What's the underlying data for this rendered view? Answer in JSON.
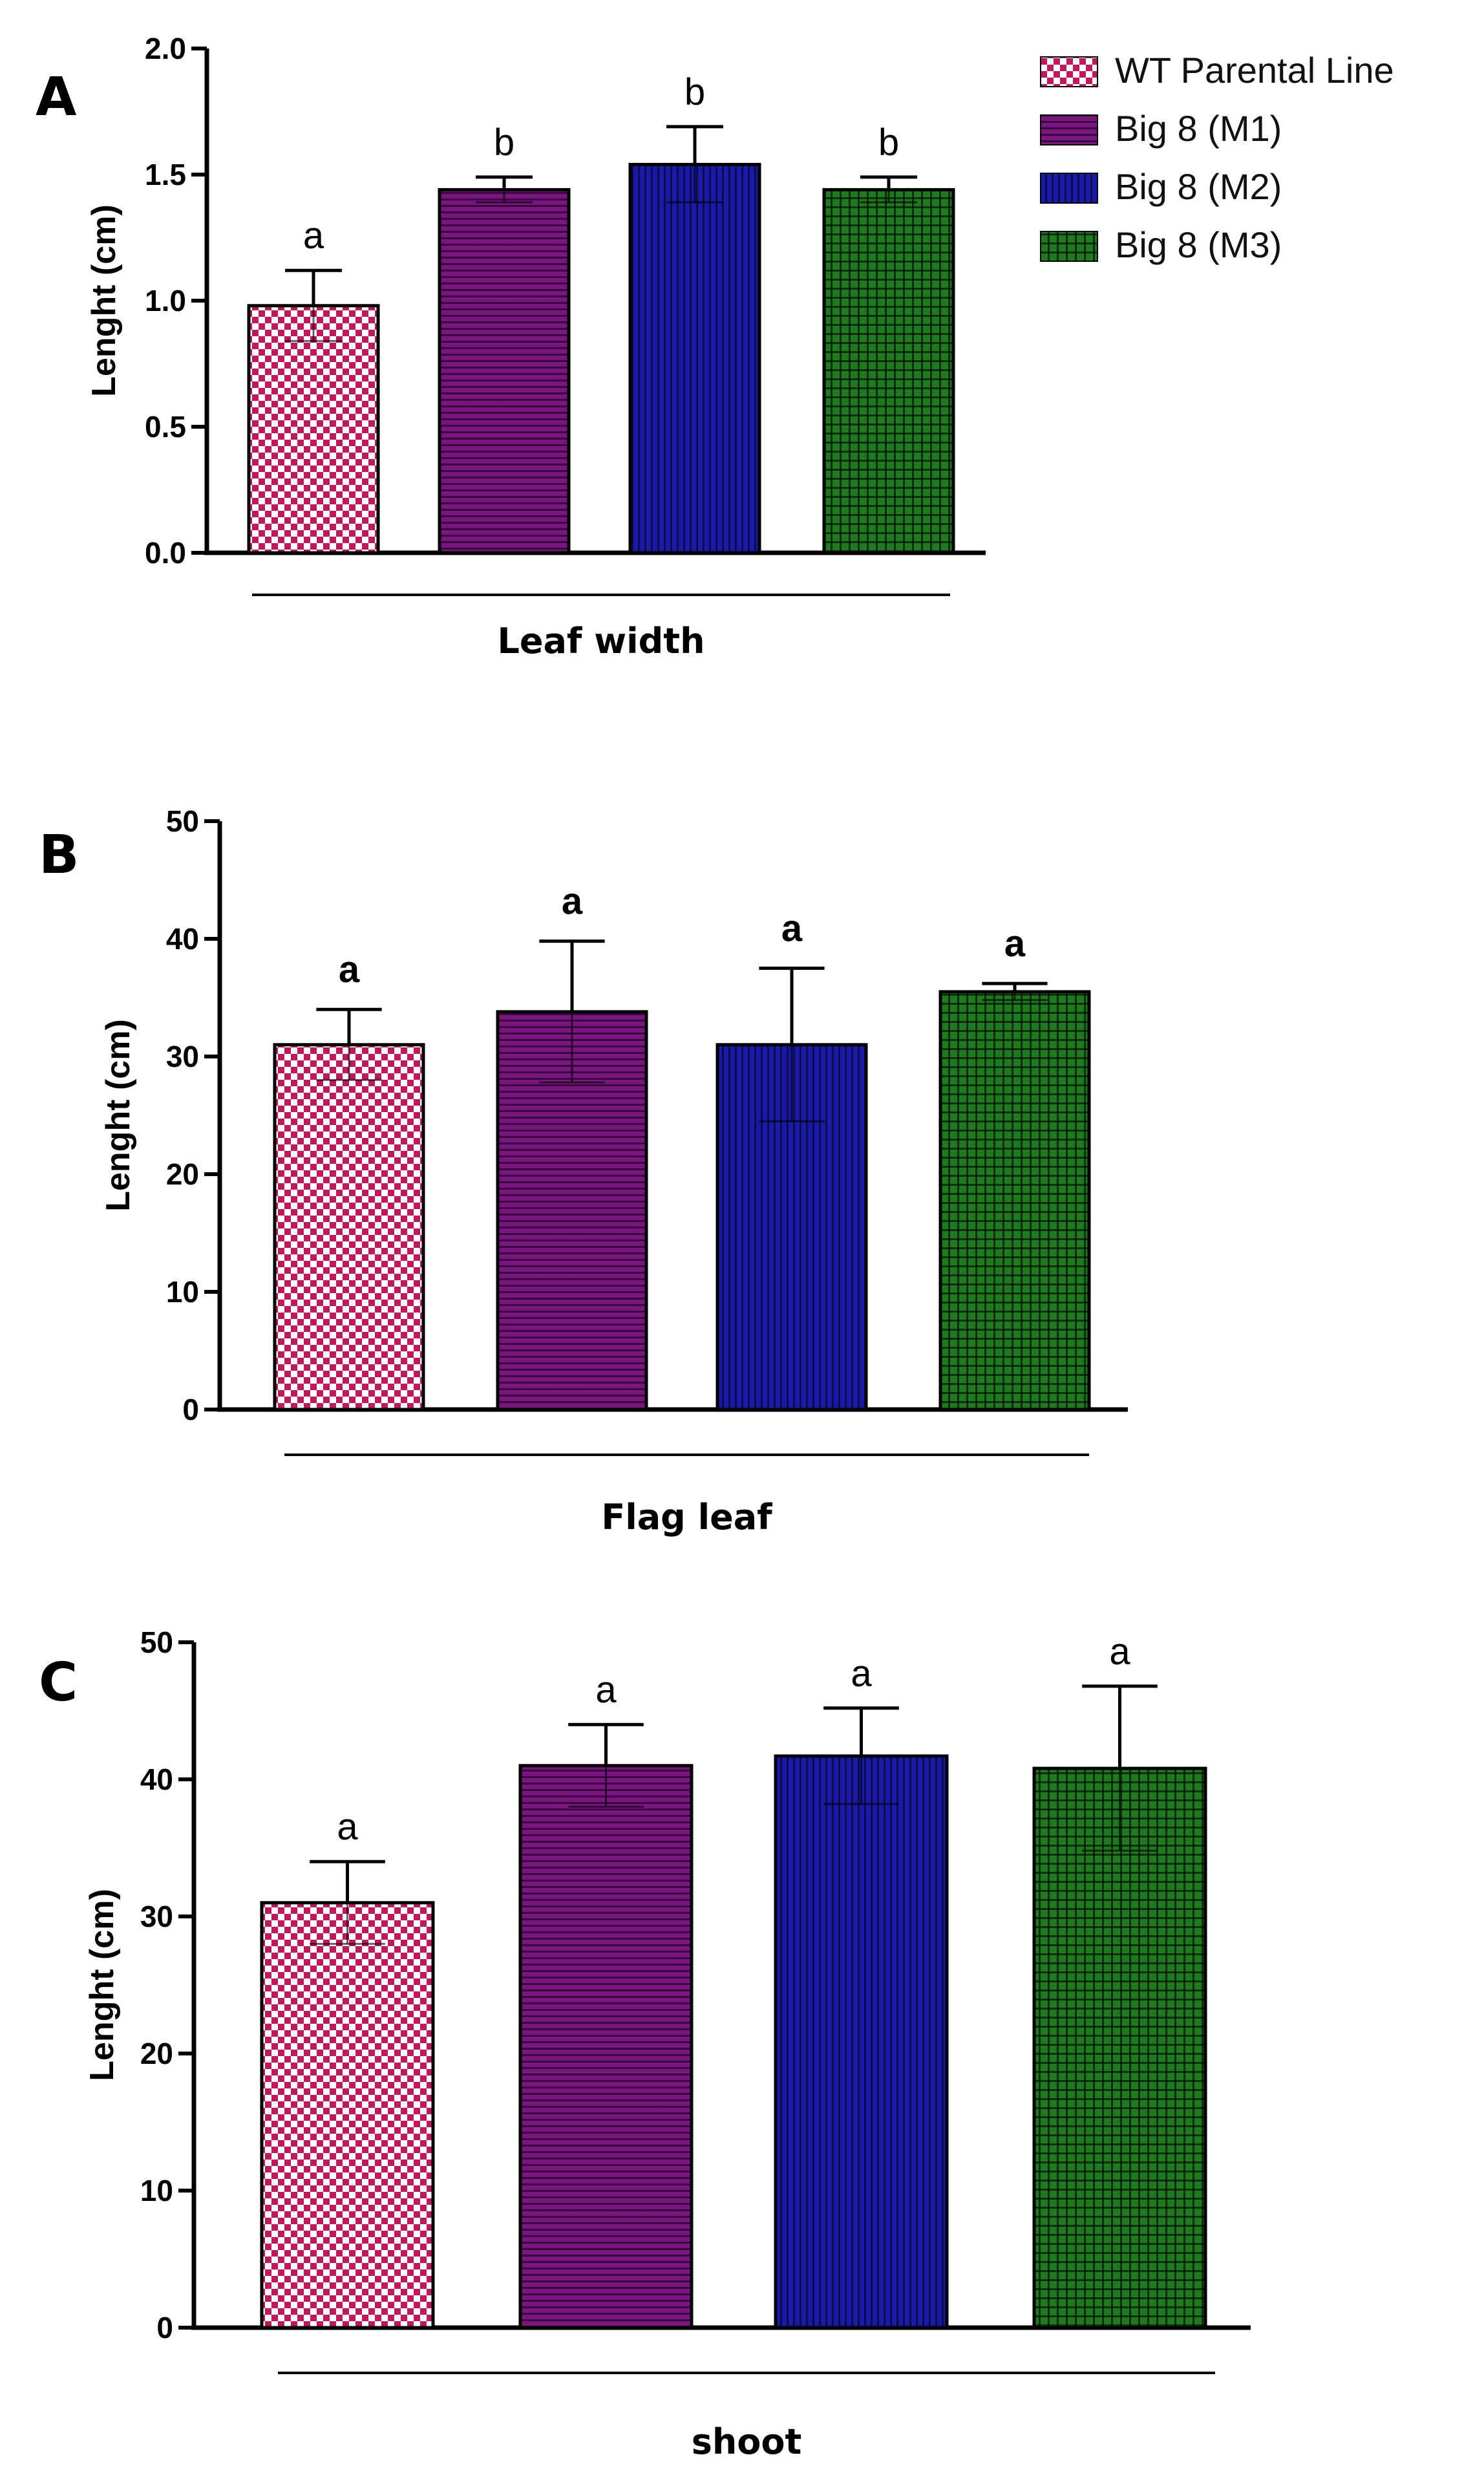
{
  "colors": {
    "wt": "#c2185b",
    "m1": "#7b1580",
    "m2": "#1a1aa8",
    "m3": "#1f7a1f"
  },
  "legend": [
    {
      "label": "WT Parental Line",
      "color": "#c2185b",
      "pattern": "checker"
    },
    {
      "label": "Big 8 (M1)",
      "color": "#7b1580",
      "pattern": "hlines"
    },
    {
      "label": "Big 8 (M2)",
      "color": "#1a1aa8",
      "pattern": "vlines"
    },
    {
      "label": "Big 8 (M3)",
      "color": "#1f7a1f",
      "pattern": "grid"
    }
  ],
  "chart_data": [
    {
      "panel": "A",
      "type": "bar",
      "title": "",
      "xlabel": "Leaf width",
      "ylabel": "Lenght (cm)",
      "ylim": [
        0,
        2.0
      ],
      "yticks": [
        "0.0",
        "0.5",
        "1.0",
        "1.5",
        "2.0"
      ],
      "categories": [
        "WT Parental Line",
        "Big 8 (M1)",
        "Big 8 (M2)",
        "Big 8 (M3)"
      ],
      "values": [
        0.98,
        1.44,
        1.54,
        1.44
      ],
      "errors": [
        0.14,
        0.05,
        0.15,
        0.05
      ],
      "significance": [
        "a",
        "b",
        "b",
        "b"
      ]
    },
    {
      "panel": "B",
      "type": "bar",
      "title": "",
      "xlabel": "Flag leaf",
      "ylabel": "Lenght (cm)",
      "ylim": [
        0,
        50
      ],
      "yticks": [
        "0",
        "10",
        "20",
        "30",
        "40",
        "50"
      ],
      "categories": [
        "WT Parental Line",
        "Big 8 (M1)",
        "Big 8 (M2)",
        "Big 8 (M3)"
      ],
      "values": [
        31,
        33.8,
        31,
        35.5
      ],
      "errors": [
        3.0,
        6.0,
        6.5,
        0.7
      ],
      "significance": [
        "a",
        "a",
        "a",
        "a"
      ]
    },
    {
      "panel": "C",
      "type": "bar",
      "title": "",
      "xlabel": "shoot",
      "ylabel": "Lenght (cm)",
      "ylim": [
        0,
        50
      ],
      "yticks": [
        "0",
        "10",
        "20",
        "30",
        "40",
        "50"
      ],
      "categories": [
        "WT Parental Line",
        "Big 8 (M1)",
        "Big 8 (M2)",
        "Big 8 (M3)"
      ],
      "values": [
        31,
        41,
        41.7,
        40.8
      ],
      "errors": [
        3.0,
        3.0,
        3.5,
        6.0
      ],
      "significance": [
        "a",
        "a",
        "a",
        "a"
      ]
    }
  ]
}
